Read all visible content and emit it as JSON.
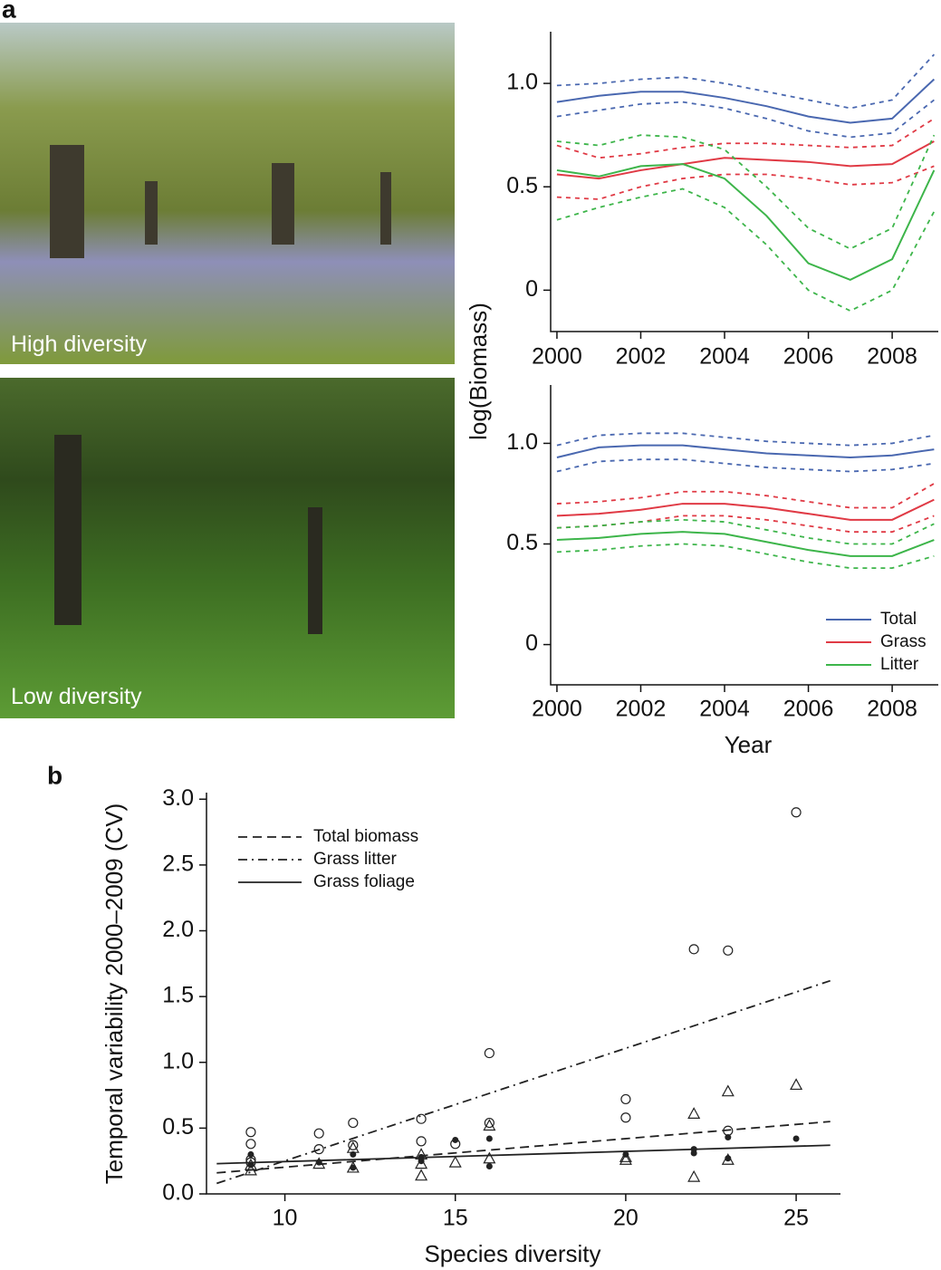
{
  "panel_labels": [
    "a",
    "b"
  ],
  "photos": [
    {
      "label": "High diversity"
    },
    {
      "label": "Low diversity"
    }
  ],
  "chart_data": [
    {
      "type": "line",
      "ylabel": "log(Biomass)",
      "x": [
        2000,
        2001,
        2002,
        2003,
        2004,
        2005,
        2006,
        2007,
        2008,
        2009
      ],
      "xlim": [
        1999.85,
        2009.1
      ],
      "xticks": [
        2000,
        2002,
        2004,
        2006,
        2008
      ],
      "ylim": [
        -0.2,
        1.25
      ],
      "yticks": [
        0,
        0.5,
        {
          "value": 1,
          "label": "1.0"
        }
      ],
      "series": [
        {
          "name": "Total",
          "color": "#4a68b0",
          "values": [
            0.91,
            0.94,
            0.96,
            0.96,
            0.93,
            0.89,
            0.84,
            0.81,
            0.83,
            1.02
          ],
          "upper": [
            0.99,
            1.0,
            1.02,
            1.03,
            1.0,
            0.96,
            0.92,
            0.88,
            0.92,
            1.14
          ],
          "lower": [
            0.84,
            0.87,
            0.9,
            0.91,
            0.88,
            0.83,
            0.77,
            0.74,
            0.76,
            0.92
          ]
        },
        {
          "name": "Grass",
          "color": "#e03a45",
          "values": [
            0.56,
            0.54,
            0.58,
            0.61,
            0.64,
            0.63,
            0.62,
            0.6,
            0.61,
            0.72
          ],
          "upper": [
            0.7,
            0.64,
            0.66,
            0.69,
            0.71,
            0.71,
            0.7,
            0.69,
            0.7,
            0.83
          ],
          "lower": [
            0.45,
            0.44,
            0.5,
            0.54,
            0.56,
            0.56,
            0.54,
            0.51,
            0.52,
            0.6
          ]
        },
        {
          "name": "Litter",
          "color": "#3db54a",
          "values": [
            0.58,
            0.55,
            0.6,
            0.61,
            0.54,
            0.36,
            0.13,
            0.05,
            0.15,
            0.58
          ],
          "upper": [
            0.72,
            0.7,
            0.75,
            0.74,
            0.68,
            0.5,
            0.3,
            0.2,
            0.3,
            0.75
          ],
          "lower": [
            0.34,
            0.4,
            0.45,
            0.49,
            0.4,
            0.22,
            0.0,
            -0.1,
            0.0,
            0.38
          ]
        }
      ]
    },
    {
      "type": "line",
      "xlabel": "Year",
      "legend": "lower right",
      "x": [
        2000,
        2001,
        2002,
        2003,
        2004,
        2005,
        2006,
        2007,
        2008,
        2009
      ],
      "xlim": [
        1999.85,
        2009.1
      ],
      "xticks": [
        2000,
        2002,
        2004,
        2006,
        2008
      ],
      "ylim": [
        -0.2,
        1.29
      ],
      "yticks": [
        0,
        0.5,
        {
          "value": 1,
          "label": "1.0"
        }
      ],
      "series": [
        {
          "name": "Total",
          "color": "#4a68b0",
          "values": [
            0.93,
            0.98,
            0.99,
            0.99,
            0.97,
            0.95,
            0.94,
            0.93,
            0.94,
            0.97
          ],
          "upper": [
            0.99,
            1.04,
            1.05,
            1.05,
            1.03,
            1.01,
            1.0,
            0.99,
            1.0,
            1.04
          ],
          "lower": [
            0.86,
            0.91,
            0.92,
            0.92,
            0.9,
            0.88,
            0.87,
            0.86,
            0.87,
            0.9
          ]
        },
        {
          "name": "Grass",
          "color": "#e03a45",
          "values": [
            0.64,
            0.65,
            0.67,
            0.7,
            0.7,
            0.68,
            0.65,
            0.62,
            0.62,
            0.72
          ],
          "upper": [
            0.7,
            0.71,
            0.73,
            0.76,
            0.76,
            0.74,
            0.71,
            0.68,
            0.68,
            0.8
          ],
          "lower": [
            0.58,
            0.59,
            0.61,
            0.64,
            0.64,
            0.62,
            0.59,
            0.56,
            0.56,
            0.64
          ]
        },
        {
          "name": "Litter",
          "color": "#3db54a",
          "values": [
            0.52,
            0.53,
            0.55,
            0.56,
            0.55,
            0.51,
            0.47,
            0.44,
            0.44,
            0.52
          ],
          "upper": [
            0.58,
            0.59,
            0.61,
            0.62,
            0.61,
            0.57,
            0.53,
            0.5,
            0.5,
            0.6
          ],
          "lower": [
            0.46,
            0.47,
            0.49,
            0.5,
            0.49,
            0.45,
            0.41,
            0.38,
            0.38,
            0.44
          ]
        }
      ]
    },
    {
      "type": "scatter",
      "xlabel": "Species diversity",
      "ylabel": "Temporal variability 2000–2009 (CV)",
      "legend": "upper left",
      "xlim": [
        7.7,
        26.3
      ],
      "xticks": [
        10,
        15,
        20,
        25
      ],
      "ylim": [
        0,
        3.05
      ],
      "yticks": [
        {
          "value": 0,
          "label": "0.0"
        },
        0.5,
        {
          "value": 1,
          "label": "1.0"
        },
        1.5,
        {
          "value": 2,
          "label": "2.0"
        },
        2.5,
        {
          "value": 3,
          "label": "3.0"
        }
      ],
      "series": [
        {
          "name": "Total biomass",
          "marker": "triangle",
          "line": "dashed",
          "color": "#222222",
          "x": [
            9,
            9,
            11,
            12,
            12,
            14,
            14,
            14,
            15,
            16,
            16,
            20,
            20,
            22,
            22,
            23,
            23,
            25
          ],
          "values": [
            0.18,
            0.22,
            0.23,
            0.35,
            0.2,
            0.3,
            0.23,
            0.14,
            0.24,
            0.52,
            0.27,
            0.28,
            0.26,
            0.61,
            0.13,
            0.78,
            0.26,
            0.83
          ],
          "fit": {
            "x": [
              8,
              26
            ],
            "values": [
              0.16,
              0.55
            ]
          }
        },
        {
          "name": "Grass litter",
          "marker": "circle",
          "line": "dashdot",
          "color": "#222222",
          "x": [
            9,
            9,
            9,
            9,
            11,
            11,
            12,
            12,
            14,
            14,
            15,
            16,
            16,
            20,
            20,
            22,
            23,
            23,
            25
          ],
          "values": [
            0.47,
            0.38,
            0.26,
            0.24,
            0.46,
            0.34,
            0.54,
            0.37,
            0.57,
            0.4,
            0.38,
            1.07,
            0.54,
            0.72,
            0.58,
            1.86,
            1.85,
            0.48,
            2.9
          ],
          "fit": {
            "x": [
              8,
              26
            ],
            "values": [
              0.08,
              1.62
            ]
          }
        },
        {
          "name": "Grass foliage",
          "marker": "dot",
          "line": "solid",
          "color": "#222222",
          "x": [
            9,
            9,
            11,
            12,
            12,
            14,
            14,
            15,
            16,
            16,
            20,
            22,
            22,
            23,
            23,
            25
          ],
          "values": [
            0.3,
            0.22,
            0.24,
            0.3,
            0.2,
            0.25,
            0.28,
            0.41,
            0.42,
            0.21,
            0.3,
            0.34,
            0.31,
            0.43,
            0.27,
            0.42
          ],
          "fit": {
            "x": [
              8,
              26
            ],
            "values": [
              0.23,
              0.37
            ]
          }
        }
      ]
    }
  ]
}
